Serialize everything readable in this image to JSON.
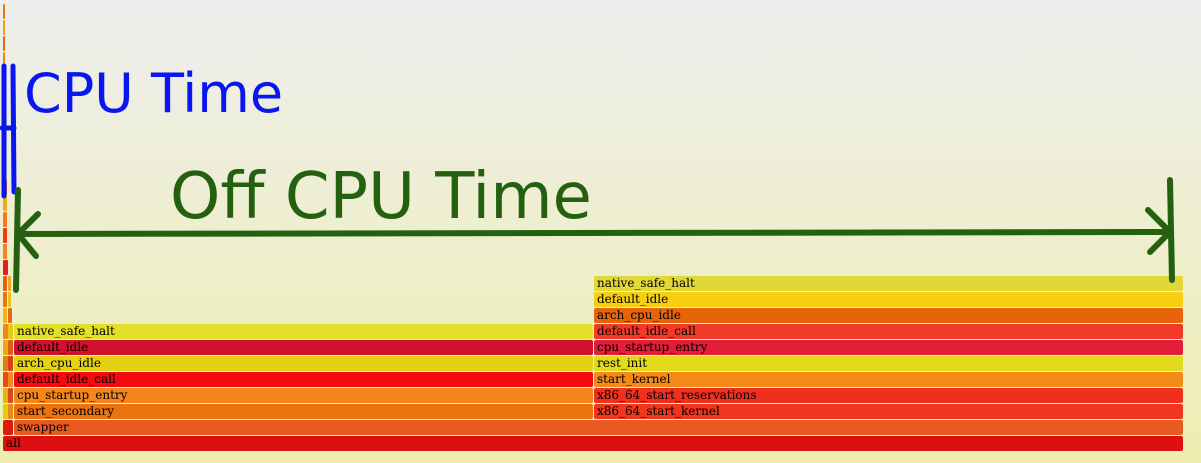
{
  "annotations": {
    "cpu_time": "CPU Time",
    "off_cpu_time": "Off CPU Time"
  },
  "colors": {
    "cpu_annotation": "#0a16f0",
    "off_cpu_annotation": "#256010"
  },
  "flame_graph": {
    "root": "all",
    "on_cpu_stack": [
      {
        "name": "swapper",
        "color": "#e85a20"
      },
      {
        "name": "start_secondary",
        "color": "#ec7410"
      },
      {
        "name": "cpu_startup_entry",
        "color": "#f4861c"
      },
      {
        "name": "default_idle_call",
        "color": "#f50a10"
      },
      {
        "name": "arch_cpu_idle",
        "color": "#e3d214"
      },
      {
        "name": "default_idle",
        "color": "#d2122c"
      },
      {
        "name": "native_safe_halt",
        "color": "#e2e028"
      }
    ],
    "off_cpu_stack": [
      {
        "name": "x86_64_start_kernel",
        "color": "#f0361c"
      },
      {
        "name": "x86_64_start_reservations",
        "color": "#f0301e"
      },
      {
        "name": "start_kernel",
        "color": "#f48a18"
      },
      {
        "name": "rest_init",
        "color": "#e4da1c"
      },
      {
        "name": "cpu_startup_entry",
        "color": "#e21e38"
      },
      {
        "name": "default_idle_call",
        "color": "#f23a28"
      },
      {
        "name": "arch_cpu_idle",
        "color": "#e6640a"
      },
      {
        "name": "default_idle",
        "color": "#f8ce10"
      },
      {
        "name": "native_safe_halt",
        "color": "#e0d838"
      }
    ]
  }
}
